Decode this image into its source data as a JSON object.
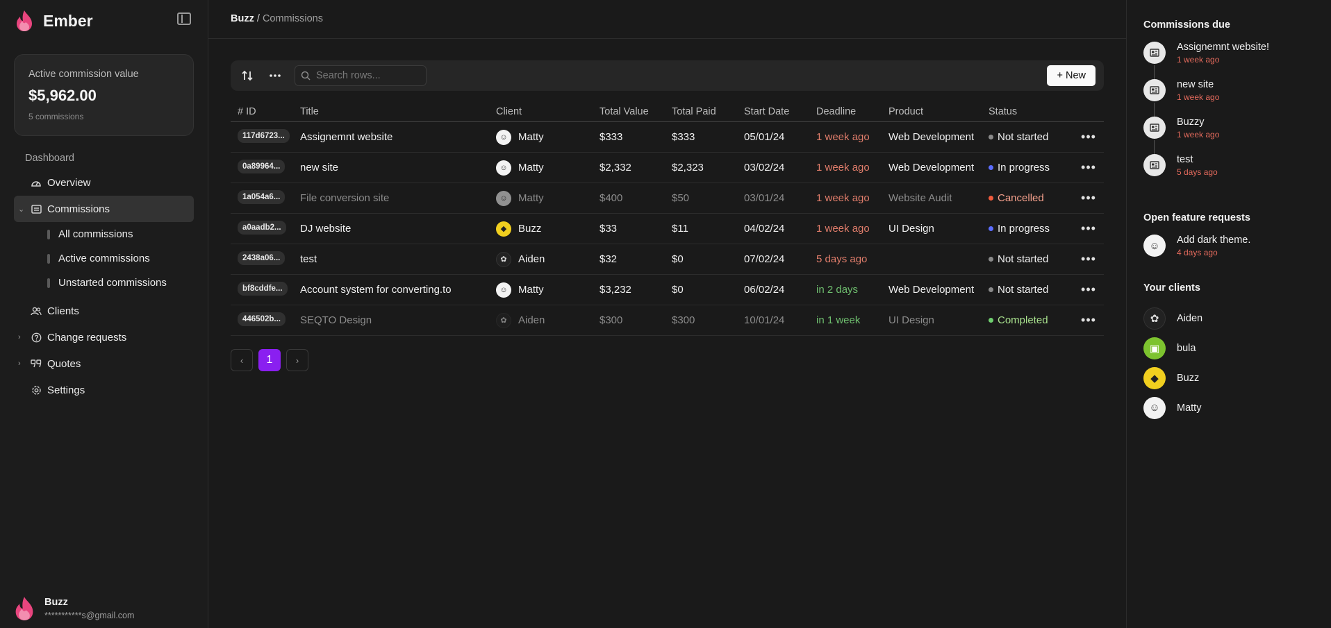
{
  "brand": {
    "name": "Ember"
  },
  "sidebar": {
    "card": {
      "label": "Active commission value",
      "amount": "$5,962.00",
      "count": "5 commissions"
    },
    "section": "Dashboard",
    "items": {
      "overview": "Overview",
      "commissions": "Commissions",
      "all": "All commissions",
      "active": "Active commissions",
      "unstarted": "Unstarted commissions",
      "clients": "Clients",
      "change_requests": "Change requests",
      "quotes": "Quotes",
      "settings": "Settings"
    },
    "user": {
      "name": "Buzz",
      "email": "***********s@gmail.com"
    }
  },
  "breadcrumb": {
    "root": "Buzz",
    "sep": "/",
    "current": "Commissions"
  },
  "toolbar": {
    "search_placeholder": "Search rows...",
    "new_label": "+ New"
  },
  "table": {
    "headers": {
      "id": "# ID",
      "title": "Title",
      "client": "Client",
      "total_value": "Total Value",
      "total_paid": "Total Paid",
      "start_date": "Start Date",
      "deadline": "Deadline",
      "product": "Product",
      "status": "Status"
    },
    "rows": [
      {
        "id": "117d6723...",
        "title": "Assignemnt website",
        "client": "Matty",
        "total_value": "$333",
        "total_paid": "$333",
        "start_date": "05/01/24",
        "deadline": "1 week ago",
        "product": "Web Development",
        "status": "Not started"
      },
      {
        "id": "0a89964...",
        "title": "new site",
        "client": "Matty",
        "total_value": "$2,332",
        "total_paid": "$2,323",
        "start_date": "03/02/24",
        "deadline": "1 week ago",
        "product": "Web Development",
        "status": "In progress"
      },
      {
        "id": "1a054a6...",
        "title": "File conversion site",
        "client": "Matty",
        "total_value": "$400",
        "total_paid": "$50",
        "start_date": "03/01/24",
        "deadline": "1 week ago",
        "product": "Website Audit",
        "status": "Cancelled"
      },
      {
        "id": "a0aadb2...",
        "title": "DJ website",
        "client": "Buzz",
        "total_value": "$33",
        "total_paid": "$11",
        "start_date": "04/02/24",
        "deadline": "1 week ago",
        "product": "UI Design",
        "status": "In progress"
      },
      {
        "id": "2438a06...",
        "title": "test",
        "client": "Aiden",
        "total_value": "$32",
        "total_paid": "$0",
        "start_date": "07/02/24",
        "deadline": "5 days ago",
        "product": "",
        "status": "Not started"
      },
      {
        "id": "bf8cddfe...",
        "title": "Account system for converting.to",
        "client": "Matty",
        "total_value": "$3,232",
        "total_paid": "$0",
        "start_date": "06/02/24",
        "deadline": "in 2 days",
        "product": "Web Development",
        "status": "Not started"
      },
      {
        "id": "446502b...",
        "title": "SEQTO Design",
        "client": "Aiden",
        "total_value": "$300",
        "total_paid": "$300",
        "start_date": "10/01/24",
        "deadline": "in 1 week",
        "product": "UI Design",
        "status": "Completed"
      }
    ]
  },
  "pagination": {
    "current": "1"
  },
  "colors": {
    "accent": "#8a1ff0",
    "deadline_red": "#e07d6b",
    "deadline_green": "#6fbf6f",
    "status_not_started": "#8a8a8a",
    "status_in_progress": "#5b6cff",
    "status_cancelled": "#f05a3c",
    "status_completed": "#6fcf6f"
  },
  "right": {
    "due_title": "Commissions due",
    "due": [
      {
        "name": "Assignemnt website!",
        "time": "1 week ago"
      },
      {
        "name": "new site",
        "time": "1 week ago"
      },
      {
        "name": "Buzzy",
        "time": "1 week ago"
      },
      {
        "name": "test",
        "time": "5 days ago"
      }
    ],
    "requests_title": "Open feature requests",
    "requests": [
      {
        "name": "Add dark theme.",
        "time": "4 days ago"
      }
    ],
    "clients_title": "Your clients",
    "clients": [
      {
        "name": "Aiden"
      },
      {
        "name": "bula"
      },
      {
        "name": "Buzz"
      },
      {
        "name": "Matty"
      }
    ]
  }
}
